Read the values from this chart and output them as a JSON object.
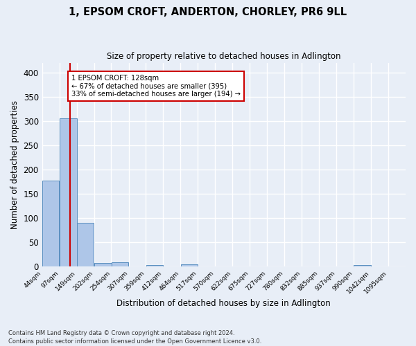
{
  "title": "1, EPSOM CROFT, ANDERTON, CHORLEY, PR6 9LL",
  "subtitle": "Size of property relative to detached houses in Adlington",
  "xlabel": "Distribution of detached houses by size in Adlington",
  "ylabel": "Number of detached properties",
  "bar_edges": [
    44,
    97,
    149,
    202,
    254,
    307,
    359,
    412,
    464,
    517,
    570,
    622,
    675,
    727,
    780,
    832,
    885,
    937,
    990,
    1042,
    1095
  ],
  "bar_heights": [
    177,
    305,
    91,
    8,
    9,
    0,
    3,
    0,
    5,
    0,
    0,
    0,
    0,
    0,
    0,
    0,
    0,
    0,
    3,
    0,
    0
  ],
  "bar_color": "#aec6e8",
  "bar_edge_color": "#5a8fc0",
  "property_size": 128,
  "property_line_color": "#cc0000",
  "annotation_text": "1 EPSOM CROFT: 128sqm\n← 67% of detached houses are smaller (395)\n33% of semi-detached houses are larger (194) →",
  "annotation_box_color": "#ffffff",
  "annotation_box_edge_color": "#cc0000",
  "ylim": [
    0,
    420
  ],
  "yticks": [
    0,
    50,
    100,
    150,
    200,
    250,
    300,
    350,
    400
  ],
  "background_color": "#e8eef7",
  "grid_color": "#ffffff",
  "footnote": "Contains HM Land Registry data © Crown copyright and database right 2024.\nContains public sector information licensed under the Open Government Licence v3.0."
}
